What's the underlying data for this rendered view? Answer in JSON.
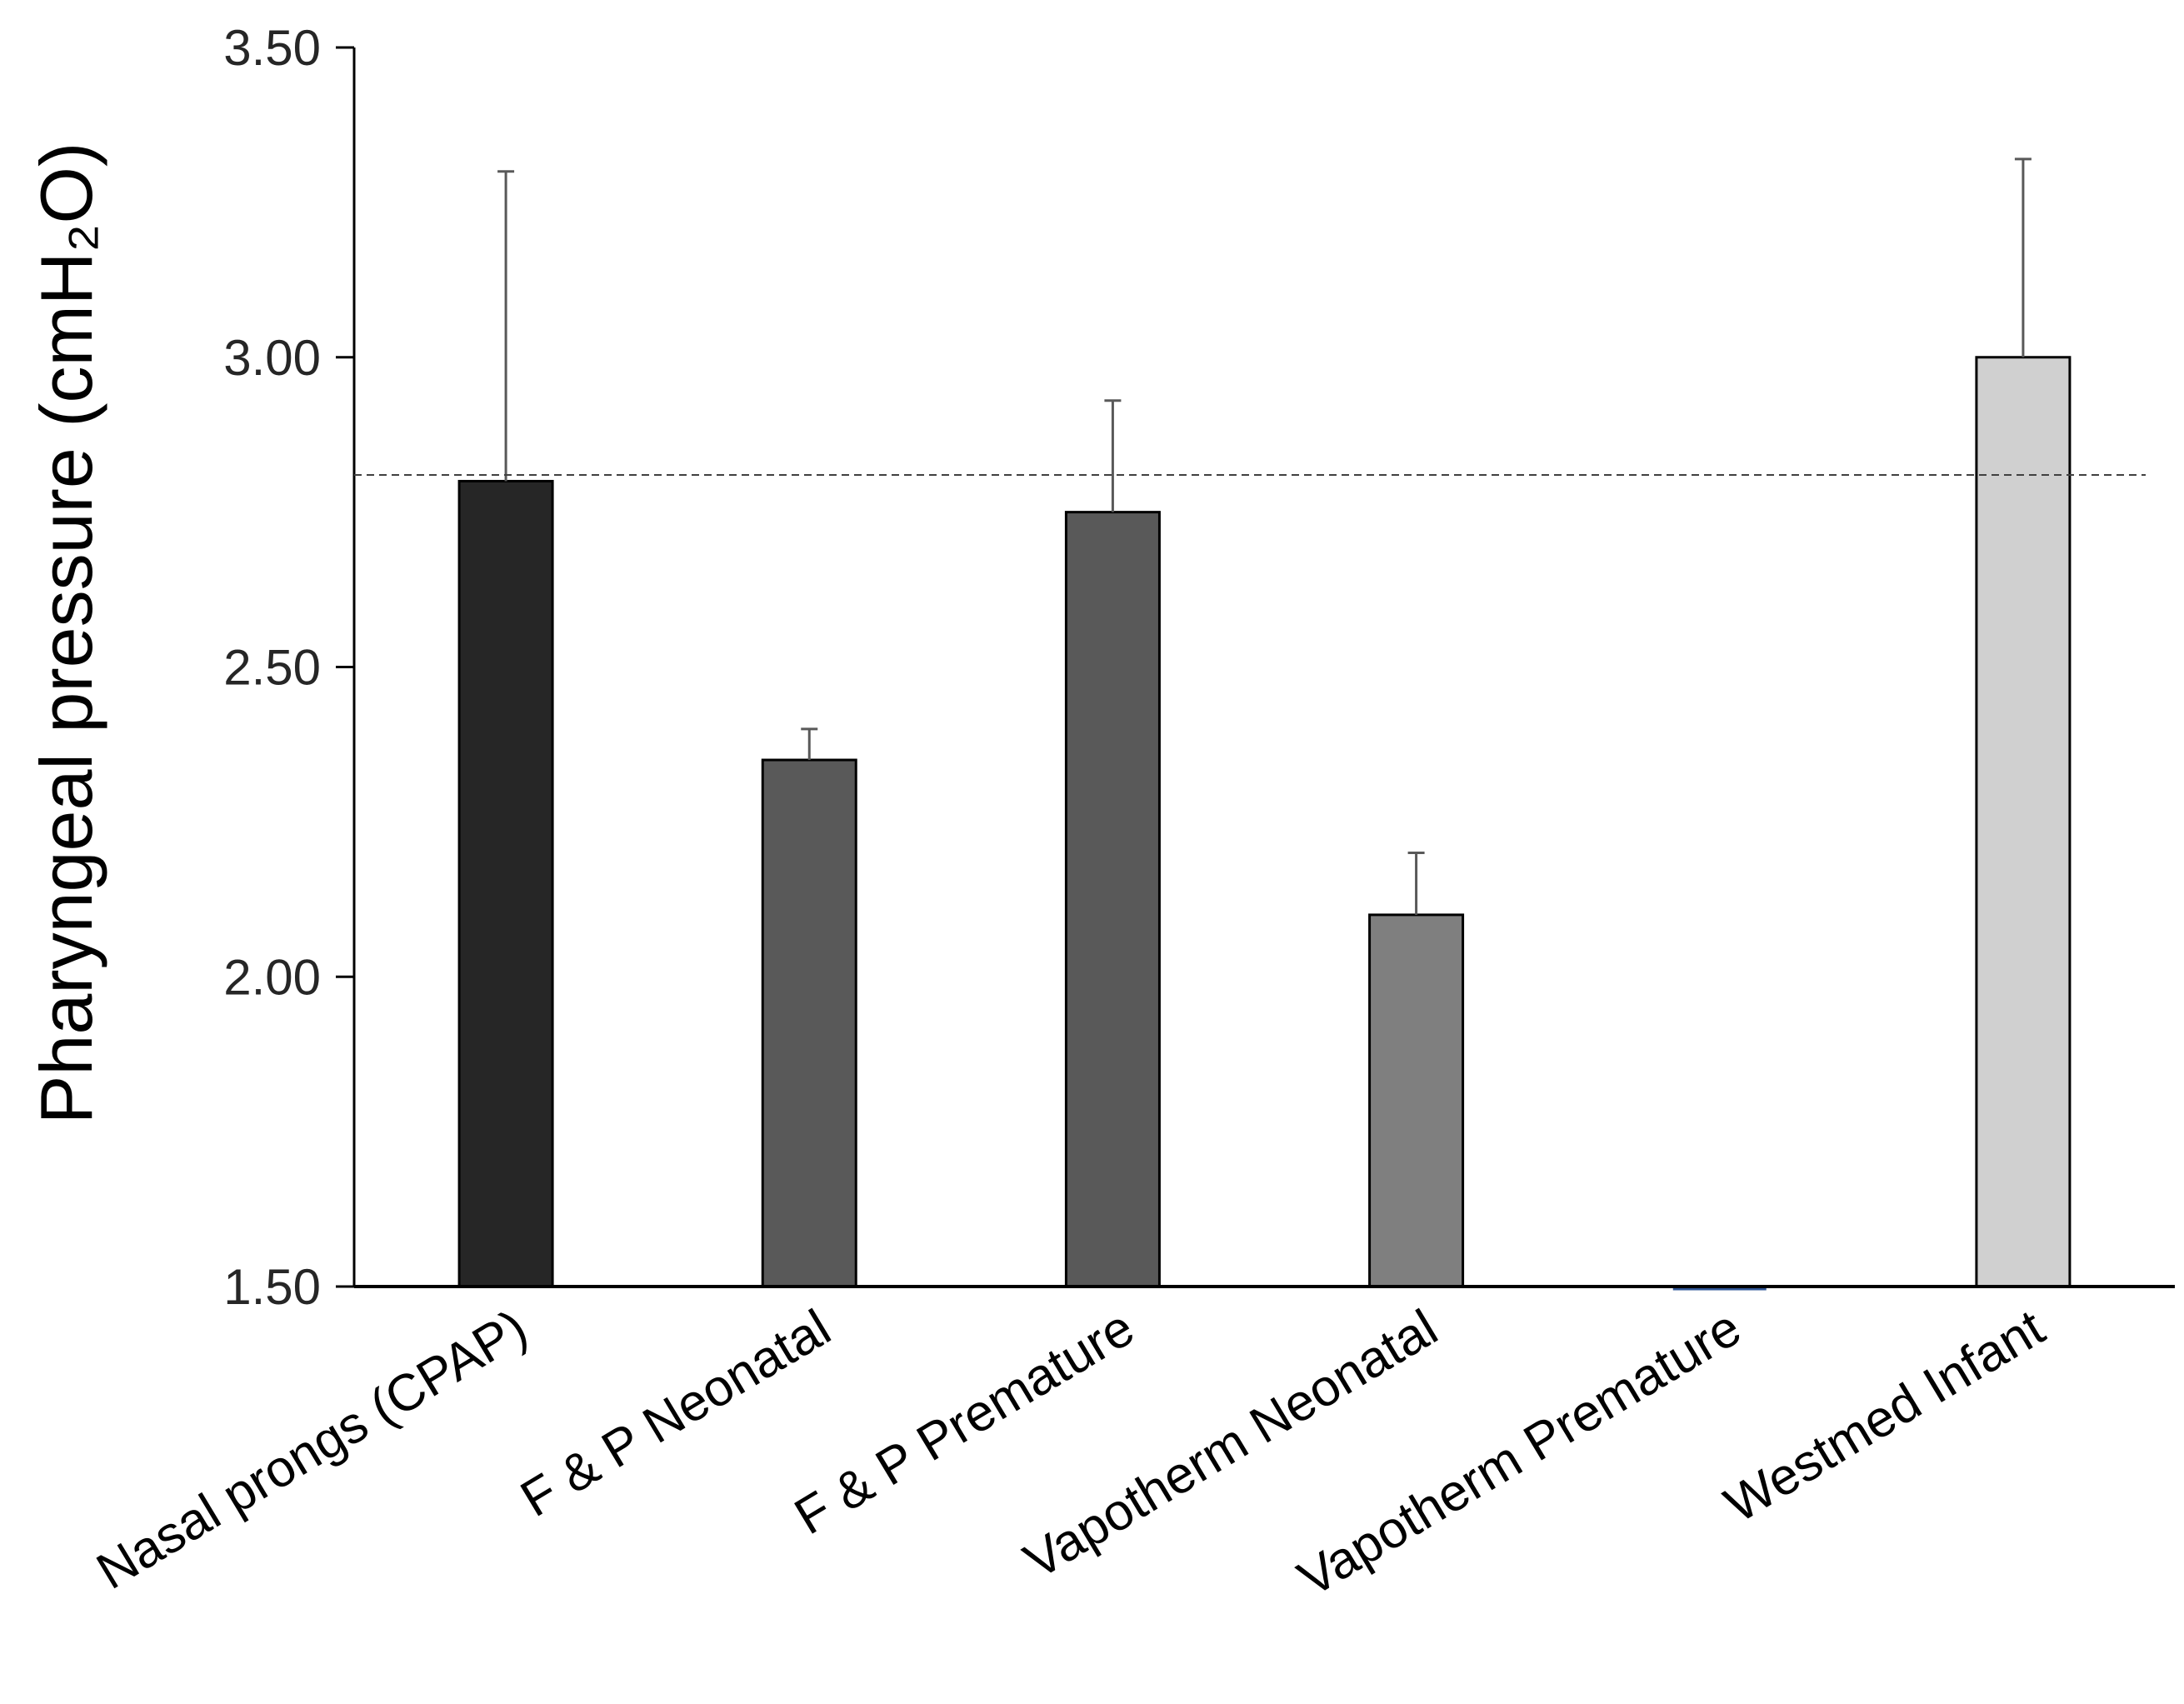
{
  "chart_data": {
    "type": "bar",
    "title": "",
    "xlabel": "",
    "ylabel": "Pharyngeal pressure (cmH₂O)",
    "ylim": [
      1.5,
      3.5
    ],
    "yticks": [
      "1.50",
      "2.00",
      "2.50",
      "3.00",
      "3.50"
    ],
    "ytick_values": [
      1.5,
      2.0,
      2.5,
      3.0,
      3.5
    ],
    "categories": [
      "Nasal prongs (CPAP)",
      "F & P Neonatal",
      "F & P Premature",
      "Vapotherm Neonatal",
      "Vapotherm Premature",
      "Westmed Infant"
    ],
    "values": [
      2.8,
      2.35,
      2.75,
      2.1,
      1.5,
      3.0
    ],
    "error_upper": [
      0.5,
      0.05,
      0.18,
      0.1,
      0.0,
      0.32
    ],
    "bar_colors": [
      "#262626",
      "#595959",
      "#595959",
      "#7f7f7f",
      "#2f5597",
      "#d0d0d0"
    ],
    "reference_line": 2.81,
    "grid": false,
    "legend": "none"
  }
}
